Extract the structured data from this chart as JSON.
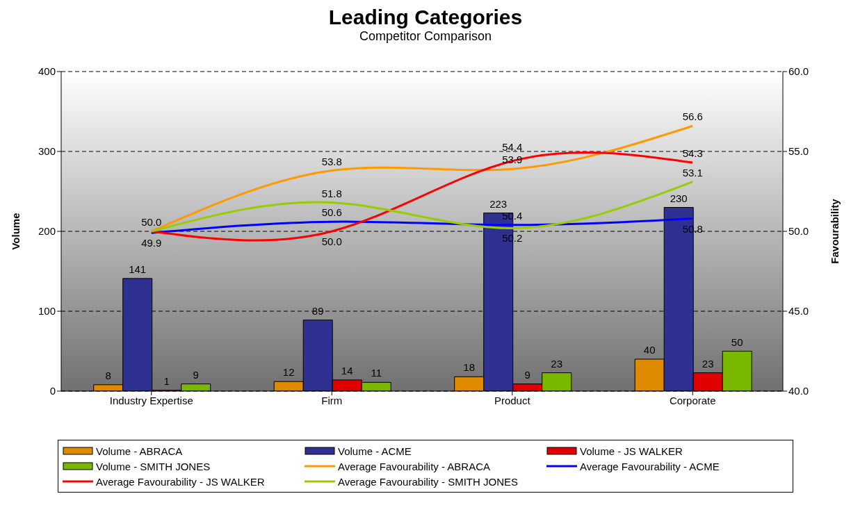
{
  "chart_data": {
    "type": "bar",
    "title": "Leading Categories",
    "subtitle": "Competitor Comparison",
    "ylabel": "Volume",
    "y2label": "Favourability",
    "categories": [
      "Industry Expertise",
      "Firm",
      "Product",
      "Corporate"
    ],
    "series": [
      {
        "name": "Volume - ABRACA",
        "type": "bar",
        "color": "#e08a00",
        "values": [
          8,
          12,
          18,
          40
        ],
        "value_labels": [
          "8",
          "12",
          "18",
          "40"
        ]
      },
      {
        "name": "Volume - ACME",
        "type": "bar",
        "color": "#2e3192",
        "values": [
          141,
          89,
          223,
          230
        ],
        "value_labels": [
          "141",
          "89",
          "223",
          "230"
        ]
      },
      {
        "name": "Volume - JS WALKER",
        "type": "bar",
        "color": "#e00000",
        "values": [
          1,
          14,
          9,
          23
        ],
        "value_labels": [
          "1",
          "14",
          "9",
          "23"
        ]
      },
      {
        "name": "Volume - SMITH JONES",
        "type": "bar",
        "color": "#7ab800",
        "values": [
          9,
          11,
          23,
          50
        ],
        "value_labels": [
          "9",
          "11",
          "23",
          "50"
        ]
      },
      {
        "name": "Average Favourability - ABRACA",
        "type": "line",
        "axis": "y2",
        "color": "#ff9900",
        "values": [
          50.0,
          53.8,
          53.9,
          56.6
        ],
        "value_labels": [
          "50.0",
          "53.8",
          "53.9",
          "56.6"
        ]
      },
      {
        "name": "Average Favourability - ACME",
        "type": "line",
        "axis": "y2",
        "color": "#0000ff",
        "values": [
          49.9,
          50.6,
          50.4,
          50.8
        ],
        "value_labels": [
          "49.9",
          "50.6",
          "50.4",
          "50.8"
        ]
      },
      {
        "name": "Average Favourability - JS WALKER",
        "type": "line",
        "axis": "y2",
        "color": "#ff0000",
        "values": [
          50.0,
          50.0,
          54.4,
          54.3
        ],
        "value_labels": [
          null,
          "50.0",
          "54.4",
          "54.3"
        ]
      },
      {
        "name": "Average Favourability - SMITH JONES",
        "type": "line",
        "axis": "y2",
        "color": "#99cc00",
        "values": [
          50.0,
          51.8,
          50.2,
          53.1
        ],
        "value_labels": [
          null,
          "51.8",
          "50.2",
          "53.1"
        ]
      }
    ],
    "ylim": [
      0,
      400
    ],
    "yticks": [
      0,
      100,
      200,
      300,
      400
    ],
    "y2lim": [
      40,
      60
    ],
    "y2ticks": [
      {
        "value": 40,
        "label": "40.0"
      },
      {
        "value": 45,
        "label": "45.0"
      },
      {
        "value": 50,
        "label": "50.0"
      },
      {
        "value": 55,
        "label": "55.0"
      },
      {
        "value": 60,
        "label": "60.0"
      }
    ],
    "grid": "y",
    "legend": "bottom",
    "marker": "none",
    "line_style": "solid"
  }
}
